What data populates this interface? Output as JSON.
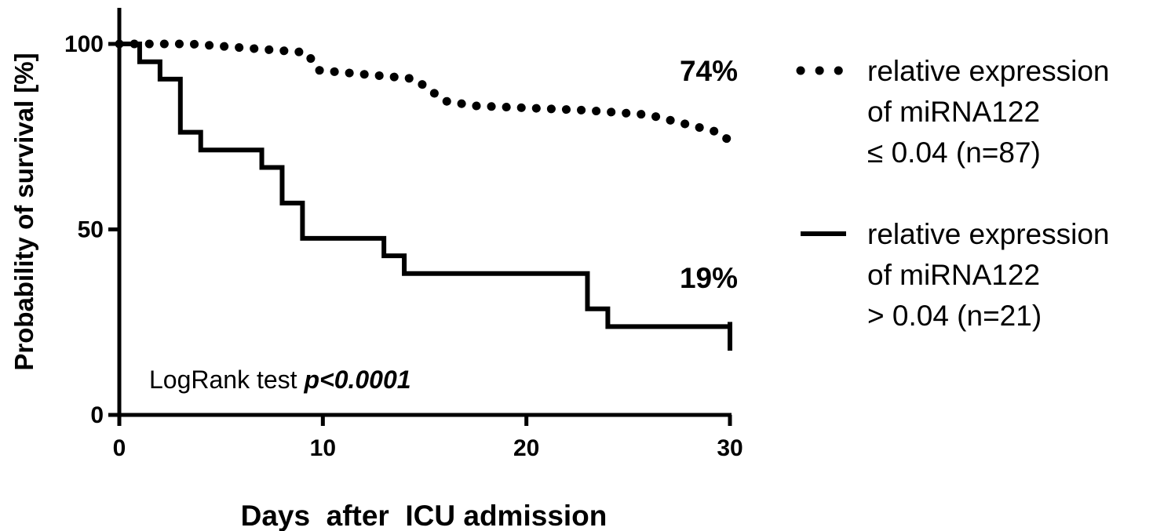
{
  "chart_data": {
    "type": "line",
    "subtype": "kaplan-meier-step",
    "title": "",
    "xlabel": "Days  after  ICU admission",
    "ylabel": "Probability of survival [%]",
    "xlim": [
      0,
      30
    ],
    "ylim": [
      0,
      100
    ],
    "xticks": [
      "0",
      "10",
      "20",
      "30"
    ],
    "yticks": [
      "0",
      "50",
      "100"
    ],
    "grid": false,
    "legend_position": "right",
    "series": [
      {
        "name_lines": [
          "relative expression",
          "of miRNA122",
          "≤ 0.04 (n=87)"
        ],
        "line_style": "dotted",
        "color": "#000000",
        "end_label": "74%",
        "points": [
          [
            0,
            100
          ],
          [
            3.5,
            100
          ],
          [
            9.2,
            97.7
          ],
          [
            9.8,
            92.9
          ],
          [
            14.5,
            90.6
          ],
          [
            16,
            84.6
          ],
          [
            17.5,
            83.3
          ],
          [
            23,
            82.1
          ],
          [
            26,
            80.9
          ],
          [
            29.5,
            76.1
          ],
          [
            30,
            73.7
          ]
        ]
      },
      {
        "name_lines": [
          "relative expression",
          "of miRNA122",
          "> 0.04 (n=21)"
        ],
        "line_style": "solid",
        "color": "#000000",
        "end_label": "19%",
        "points": [
          [
            0,
            100
          ],
          [
            1,
            95.2
          ],
          [
            2,
            90.5
          ],
          [
            3,
            76.2
          ],
          [
            4,
            71.4
          ],
          [
            7,
            66.7
          ],
          [
            8,
            57.1
          ],
          [
            9,
            47.6
          ],
          [
            13,
            42.9
          ],
          [
            14,
            38.1
          ],
          [
            23,
            28.6
          ],
          [
            24,
            23.8
          ],
          [
            30,
            19.0
          ]
        ]
      }
    ],
    "annotation": {
      "text": "LogRank test ",
      "emphasis": "p<0.0001"
    }
  }
}
